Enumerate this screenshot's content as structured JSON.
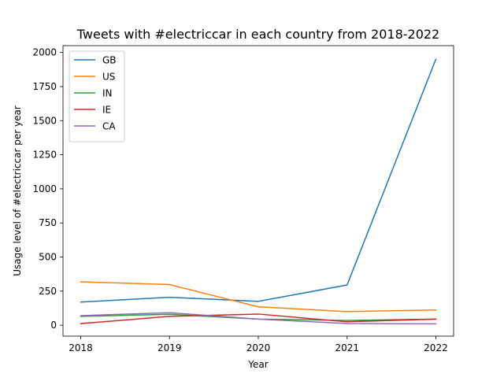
{
  "chart_data": {
    "type": "line",
    "title": "Tweets with #electriccar in each country from 2018-2022",
    "xlabel": "Year",
    "ylabel": "Usage level of #electriccar per year",
    "x": [
      2018,
      2019,
      2020,
      2021,
      2022
    ],
    "x_tick_labels": [
      "2018",
      "2019",
      "2020",
      "2021",
      "2022"
    ],
    "y_ticks": [
      0,
      250,
      500,
      750,
      1000,
      1250,
      1500,
      1750,
      2000
    ],
    "y_tick_labels": [
      "0",
      "250",
      "500",
      "750",
      "1000",
      "1250",
      "1500",
      "1750",
      "2000"
    ],
    "xlim": [
      2017.8,
      2022.2
    ],
    "ylim": [
      -80,
      2050
    ],
    "grid": false,
    "legend_position": "top-left",
    "series": [
      {
        "name": "GB",
        "color": "#1f77b4",
        "values": [
          170,
          205,
          175,
          295,
          1950
        ]
      },
      {
        "name": "US",
        "color": "#ff7f0e",
        "values": [
          318,
          298,
          135,
          100,
          112
        ]
      },
      {
        "name": "IN",
        "color": "#2ca02c",
        "values": [
          65,
          80,
          45,
          35,
          45
        ]
      },
      {
        "name": "IE",
        "color": "#d62728",
        "values": [
          12,
          65,
          82,
          25,
          45
        ]
      },
      {
        "name": "CA",
        "color": "#9467bd",
        "values": [
          70,
          92,
          45,
          12,
          10
        ]
      }
    ]
  }
}
